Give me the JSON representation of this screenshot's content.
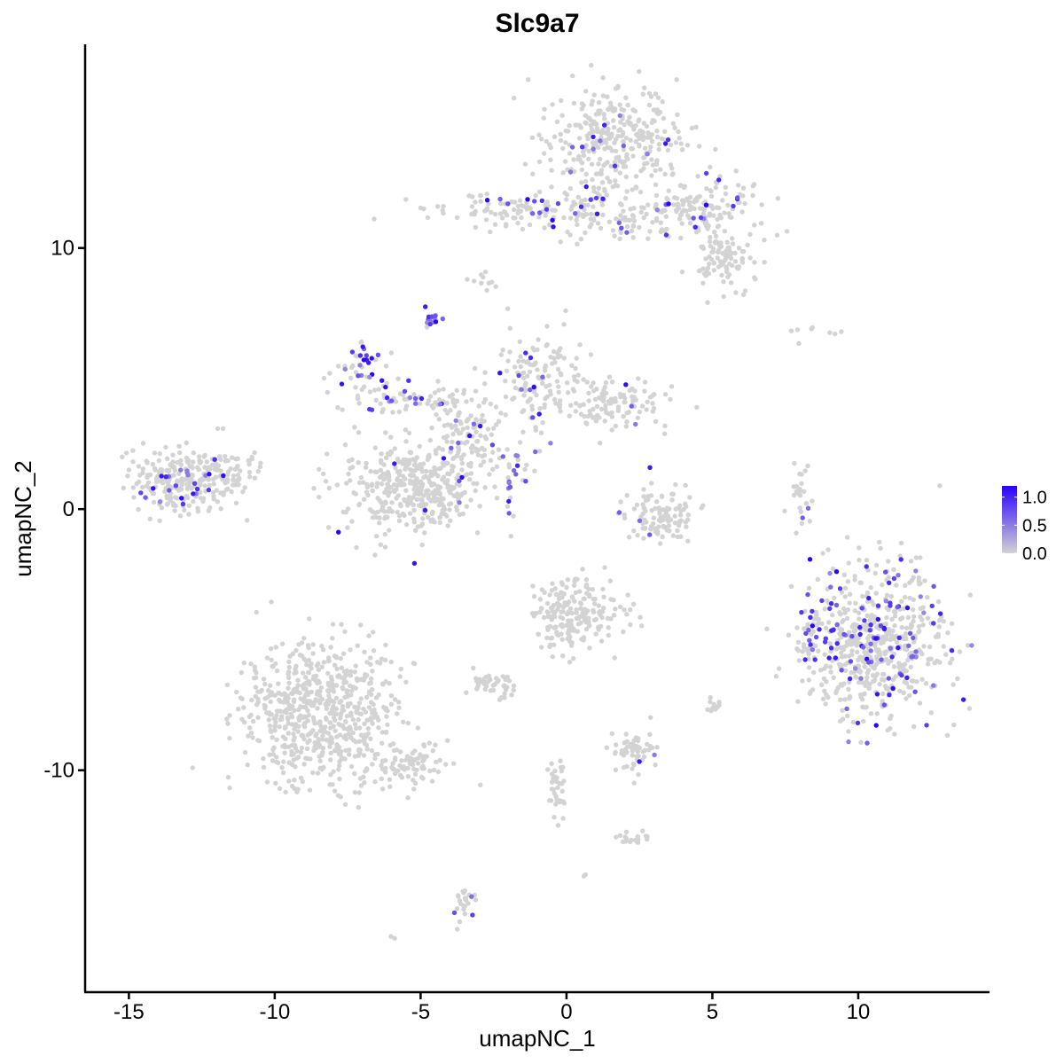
{
  "chart_data": {
    "type": "scatter",
    "title": "Slc9a7",
    "xlabel": "umapNC_1",
    "ylabel": "umapNC_2",
    "xlim": [
      -16.5,
      14.5
    ],
    "ylim": [
      -18.5,
      17.8
    ],
    "x_ticks": [
      -15,
      -10,
      -5,
      0,
      5,
      10
    ],
    "x_tick_labels": [
      "-15",
      "-10",
      "-5",
      "0",
      "5",
      "10"
    ],
    "y_ticks": [
      -10,
      0,
      10
    ],
    "y_tick_labels": [
      "-10",
      "0",
      "10"
    ],
    "grid": false,
    "legend": {
      "position": "right",
      "type": "colorbar",
      "min_color": "#d3d3d3",
      "max_color": "#2a00ff",
      "ticks": [
        0.0,
        0.5,
        1.0
      ],
      "tick_labels": [
        "0.0",
        "0.5",
        "1.0"
      ],
      "range": [
        0.0,
        1.2
      ]
    },
    "clusters": [
      {
        "cx": 1.5,
        "cy": 14.2,
        "sx": 1.1,
        "sy": 1.1,
        "n": 340,
        "expr_frac": 0.04
      },
      {
        "cx": 4.6,
        "cy": 11.5,
        "sx": 1.1,
        "sy": 0.6,
        "n": 150,
        "expr_frac": 0.08
      },
      {
        "cx": 5.4,
        "cy": 9.6,
        "sx": 0.5,
        "sy": 0.5,
        "n": 90,
        "expr_frac": 0.0
      },
      {
        "cx": -1.5,
        "cy": 11.4,
        "sx": 1.8,
        "sy": 0.35,
        "n": 120,
        "expr_frac": 0.15
      },
      {
        "cx": 1.8,
        "cy": 11.0,
        "sx": 1.3,
        "sy": 0.4,
        "n": 70,
        "expr_frac": 0.05
      },
      {
        "cx": -2.8,
        "cy": 8.7,
        "sx": 0.2,
        "sy": 0.25,
        "n": 10,
        "expr_frac": 0.0
      },
      {
        "cx": -4.6,
        "cy": 7.3,
        "sx": 0.15,
        "sy": 0.2,
        "n": 20,
        "expr_frac": 0.7
      },
      {
        "cx": -7.0,
        "cy": 5.5,
        "sx": 0.5,
        "sy": 0.6,
        "n": 45,
        "expr_frac": 0.35
      },
      {
        "cx": -5.2,
        "cy": 4.2,
        "sx": 0.9,
        "sy": 0.3,
        "n": 60,
        "expr_frac": 0.3
      },
      {
        "cx": -1.0,
        "cy": 5.0,
        "sx": 0.8,
        "sy": 0.8,
        "n": 130,
        "expr_frac": 0.05
      },
      {
        "cx": 1.5,
        "cy": 4.1,
        "sx": 1.0,
        "sy": 0.5,
        "n": 120,
        "expr_frac": 0.03
      },
      {
        "cx": -3.6,
        "cy": 2.7,
        "sx": 0.6,
        "sy": 1.0,
        "n": 130,
        "expr_frac": 0.06
      },
      {
        "cx": -1.8,
        "cy": 1.5,
        "sx": 0.5,
        "sy": 0.5,
        "n": 30,
        "expr_frac": 0.45
      },
      {
        "cx": -5.3,
        "cy": 0.8,
        "sx": 1.2,
        "sy": 0.85,
        "n": 380,
        "expr_frac": 0.01
      },
      {
        "cx": -13.1,
        "cy": 1.1,
        "sx": 0.95,
        "sy": 0.6,
        "n": 260,
        "expr_frac": 0.1
      },
      {
        "cx": -11.3,
        "cy": 1.6,
        "sx": 0.6,
        "sy": 0.3,
        "n": 40,
        "expr_frac": 0.05
      },
      {
        "cx": 3.2,
        "cy": -0.3,
        "sx": 0.6,
        "sy": 0.5,
        "n": 110,
        "expr_frac": 0.02
      },
      {
        "cx": 8.1,
        "cy": 0.5,
        "sx": 0.2,
        "sy": 0.6,
        "n": 25,
        "expr_frac": 0.05
      },
      {
        "cx": 8.4,
        "cy": 6.7,
        "sx": 0.6,
        "sy": 0.2,
        "n": 8,
        "expr_frac": 0.0
      },
      {
        "cx": 10.5,
        "cy": -5.1,
        "sx": 1.2,
        "sy": 1.4,
        "n": 620,
        "expr_frac": 0.17
      },
      {
        "cx": 8.3,
        "cy": -4.9,
        "sx": 0.25,
        "sy": 0.4,
        "n": 25,
        "expr_frac": 0.15
      },
      {
        "cx": -8.5,
        "cy": -7.8,
        "sx": 1.3,
        "sy": 1.4,
        "n": 640,
        "expr_frac": 0.0
      },
      {
        "cx": -5.5,
        "cy": -9.7,
        "sx": 0.9,
        "sy": 0.4,
        "n": 90,
        "expr_frac": 0.0
      },
      {
        "cx": 0.2,
        "cy": -4.0,
        "sx": 0.8,
        "sy": 0.7,
        "n": 200,
        "expr_frac": 0.0
      },
      {
        "cx": -2.5,
        "cy": -6.8,
        "sx": 0.35,
        "sy": 0.2,
        "n": 40,
        "expr_frac": 0.0
      },
      {
        "cx": 2.4,
        "cy": -9.3,
        "sx": 0.4,
        "sy": 0.4,
        "n": 60,
        "expr_frac": 0.02
      },
      {
        "cx": 5.0,
        "cy": -7.4,
        "sx": 0.15,
        "sy": 0.2,
        "n": 12,
        "expr_frac": 0.0
      },
      {
        "cx": -0.3,
        "cy": -10.8,
        "sx": 0.2,
        "sy": 0.6,
        "n": 35,
        "expr_frac": 0.0
      },
      {
        "cx": 2.3,
        "cy": -12.6,
        "sx": 0.25,
        "sy": 0.15,
        "n": 18,
        "expr_frac": 0.0
      },
      {
        "cx": -3.5,
        "cy": -15.1,
        "sx": 0.2,
        "sy": 0.4,
        "n": 25,
        "expr_frac": 0.05
      },
      {
        "cx": -6.0,
        "cy": -16.4,
        "sx": 0.05,
        "sy": 0.05,
        "n": 2,
        "expr_frac": 0.0
      },
      {
        "cx": 0.6,
        "cy": -14.0,
        "sx": 0.05,
        "sy": 0.05,
        "n": 2,
        "expr_frac": 0.0
      }
    ]
  }
}
